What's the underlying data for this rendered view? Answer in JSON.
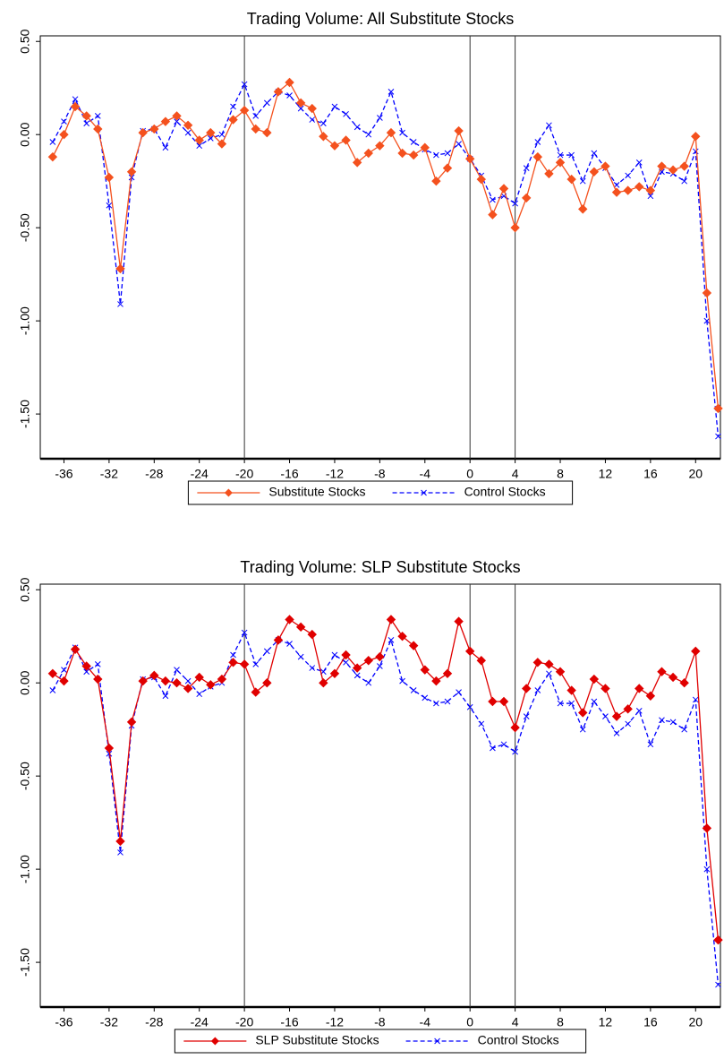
{
  "chart_data": [
    {
      "type": "line",
      "title": "Trading Volume: All Substitute Stocks",
      "x": [
        -37,
        -36,
        -35,
        -34,
        -33,
        -32,
        -31,
        -30,
        -29,
        -28,
        -27,
        -26,
        -25,
        -24,
        -23,
        -22,
        -21,
        -20,
        -19,
        -18,
        -17,
        -16,
        -15,
        -14,
        -13,
        -12,
        -11,
        -10,
        -9,
        -8,
        -7,
        -6,
        -5,
        -4,
        -3,
        -2,
        -1,
        0,
        1,
        2,
        3,
        4,
        5,
        6,
        7,
        8,
        9,
        10,
        11,
        12,
        13,
        14,
        15,
        16,
        17,
        18,
        19,
        20,
        21,
        22
      ],
      "series": [
        {
          "name": "Substitute Stocks",
          "color": "#f4511e",
          "marker": "diamond",
          "dashed": false,
          "values": [
            -0.12,
            0.0,
            0.15,
            0.1,
            0.03,
            -0.23,
            -0.72,
            -0.2,
            0.01,
            0.03,
            0.07,
            0.1,
            0.05,
            -0.03,
            0.01,
            -0.05,
            0.08,
            0.13,
            0.03,
            0.01,
            0.23,
            0.28,
            0.17,
            0.14,
            -0.01,
            -0.06,
            -0.03,
            -0.15,
            -0.1,
            -0.06,
            0.01,
            -0.1,
            -0.11,
            -0.07,
            -0.25,
            -0.18,
            0.02,
            -0.13,
            -0.24,
            -0.43,
            -0.29,
            -0.5,
            -0.34,
            -0.12,
            -0.21,
            -0.15,
            -0.24,
            -0.4,
            -0.2,
            -0.17,
            -0.31,
            -0.3,
            -0.28,
            -0.3,
            -0.17,
            -0.19,
            -0.17,
            -0.01,
            -0.85,
            -1.47
          ]
        },
        {
          "name": "Control Stocks",
          "color": "#0000ff",
          "marker": "x",
          "dashed": true,
          "values": [
            -0.04,
            0.07,
            0.19,
            0.06,
            0.1,
            -0.38,
            -0.91,
            -0.23,
            0.02,
            0.03,
            -0.07,
            0.07,
            0.01,
            -0.06,
            -0.02,
            0.0,
            0.15,
            0.27,
            0.1,
            0.17,
            0.23,
            0.21,
            0.14,
            0.08,
            0.06,
            0.15,
            0.11,
            0.04,
            0.0,
            0.09,
            0.23,
            0.01,
            -0.04,
            -0.08,
            -0.11,
            -0.1,
            -0.05,
            -0.13,
            -0.22,
            -0.35,
            -0.33,
            -0.37,
            -0.18,
            -0.04,
            0.05,
            -0.11,
            -0.11,
            -0.25,
            -0.1,
            -0.18,
            -0.27,
            -0.22,
            -0.15,
            -0.33,
            -0.2,
            -0.21,
            -0.25,
            -0.09,
            -1.0,
            -1.62
          ]
        }
      ],
      "xlim": [
        -38.1,
        22.2
      ],
      "xticks": [
        -36,
        -32,
        -28,
        -24,
        -20,
        -16,
        -12,
        -8,
        -4,
        0,
        4,
        8,
        12,
        16,
        20
      ],
      "ylim": [
        -1.74,
        0.53
      ],
      "yticks": [
        {
          "value": 0.5,
          "label": "0.50"
        },
        {
          "value": 0,
          "label": "0.00"
        },
        {
          "value": -0.5,
          "label": "-0.50"
        },
        {
          "value": -1,
          "label": "-1.00"
        },
        {
          "value": -1.5,
          "label": "-1.50"
        }
      ],
      "vlines": [
        -20,
        0,
        4
      ],
      "legend": "bottom"
    },
    {
      "type": "line",
      "title": "Trading Volume: SLP Substitute Stocks",
      "x": [
        -37,
        -36,
        -35,
        -34,
        -33,
        -32,
        -31,
        -30,
        -29,
        -28,
        -27,
        -26,
        -25,
        -24,
        -23,
        -22,
        -21,
        -20,
        -19,
        -18,
        -17,
        -16,
        -15,
        -14,
        -13,
        -12,
        -11,
        -10,
        -9,
        -8,
        -7,
        -6,
        -5,
        -4,
        -3,
        -2,
        -1,
        0,
        1,
        2,
        3,
        4,
        5,
        6,
        7,
        8,
        9,
        10,
        11,
        12,
        13,
        14,
        15,
        16,
        17,
        18,
        19,
        20,
        21,
        22
      ],
      "series": [
        {
          "name": "SLP Substitute Stocks",
          "color": "#e00000",
          "marker": "diamond",
          "dashed": false,
          "values": [
            0.05,
            0.01,
            0.18,
            0.09,
            0.02,
            -0.35,
            -0.85,
            -0.21,
            0.01,
            0.04,
            0.01,
            0.0,
            -0.03,
            0.03,
            -0.01,
            0.02,
            0.11,
            0.1,
            -0.05,
            0.0,
            0.23,
            0.34,
            0.3,
            0.26,
            0.0,
            0.05,
            0.15,
            0.08,
            0.12,
            0.14,
            0.34,
            0.25,
            0.2,
            0.07,
            0.01,
            0.05,
            0.33,
            0.17,
            0.12,
            -0.1,
            -0.1,
            -0.24,
            -0.03,
            0.11,
            0.1,
            0.06,
            -0.04,
            -0.16,
            0.02,
            -0.03,
            -0.18,
            -0.14,
            -0.03,
            -0.07,
            0.06,
            0.03,
            0.0,
            0.17,
            -0.78,
            -1.38
          ]
        },
        {
          "name": "Control Stocks",
          "color": "#0000ff",
          "marker": "x",
          "dashed": true,
          "values": [
            -0.04,
            0.07,
            0.19,
            0.06,
            0.1,
            -0.38,
            -0.91,
            -0.23,
            0.02,
            0.03,
            -0.07,
            0.07,
            0.01,
            -0.06,
            -0.02,
            0.0,
            0.15,
            0.27,
            0.1,
            0.17,
            0.23,
            0.21,
            0.14,
            0.08,
            0.06,
            0.15,
            0.11,
            0.04,
            0.0,
            0.09,
            0.23,
            0.01,
            -0.04,
            -0.08,
            -0.11,
            -0.1,
            -0.05,
            -0.13,
            -0.22,
            -0.35,
            -0.33,
            -0.37,
            -0.18,
            -0.04,
            0.05,
            -0.11,
            -0.11,
            -0.25,
            -0.1,
            -0.18,
            -0.27,
            -0.22,
            -0.15,
            -0.33,
            -0.2,
            -0.21,
            -0.25,
            -0.09,
            -1.0,
            -1.62
          ]
        }
      ],
      "xlim": [
        -38.1,
        22.2
      ],
      "xticks": [
        -36,
        -32,
        -28,
        -24,
        -20,
        -16,
        -12,
        -8,
        -4,
        0,
        4,
        8,
        12,
        16,
        20
      ],
      "ylim": [
        -1.74,
        0.53
      ],
      "yticks": [
        {
          "value": 0.5,
          "label": "0.50"
        },
        {
          "value": 0,
          "label": "0.00"
        },
        {
          "value": -0.5,
          "label": "-0.50"
        },
        {
          "value": -1,
          "label": "-1.00"
        },
        {
          "value": -1.5,
          "label": "-1.50"
        }
      ],
      "vlines": [
        -20,
        0,
        4
      ],
      "legend": "bottom"
    }
  ]
}
